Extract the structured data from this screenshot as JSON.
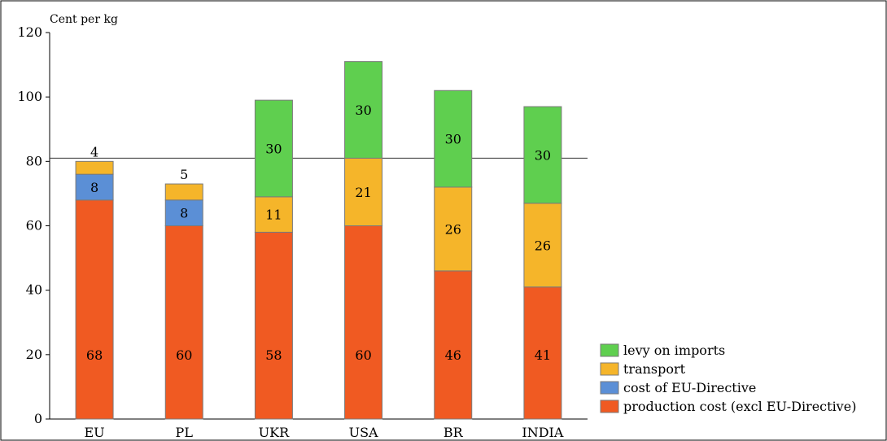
{
  "chart_data": {
    "type": "bar",
    "stacked": true,
    "ylabel": "Cent per kg",
    "ylim": [
      0,
      120
    ],
    "yticks": [
      0,
      20,
      40,
      60,
      80,
      100,
      120
    ],
    "reference_line": 81,
    "categories": [
      "EU",
      "PL",
      "UKR",
      "USA",
      "BR",
      "INDIA"
    ],
    "series": [
      {
        "name": "production cost (excl EU-Directive)",
        "color": "#f05a22",
        "values": [
          68,
          60,
          58,
          60,
          46,
          41
        ],
        "labels": [
          "68",
          "60",
          "58",
          "60",
          "46",
          "41"
        ]
      },
      {
        "name": "cost of EU-Directive",
        "color": "#5b8fd6",
        "values": [
          8,
          8,
          0,
          0,
          0,
          0
        ],
        "labels": [
          "8",
          "8",
          "",
          "",
          "",
          ""
        ]
      },
      {
        "name": "transport",
        "color": "#f5b52a",
        "values": [
          4,
          5,
          11,
          21,
          26,
          26
        ],
        "labels": [
          "4",
          "5",
          "11",
          "21",
          "26",
          "26"
        ]
      },
      {
        "name": "levy on imports",
        "color": "#5fcf4f",
        "values": [
          0,
          0,
          30,
          30,
          30,
          30
        ],
        "labels": [
          "",
          "",
          "30",
          "30",
          "30",
          "30"
        ]
      }
    ],
    "legend_order": [
      "levy on imports",
      "transport",
      "cost of EU-Directive",
      "production cost (excl EU-Directive)"
    ],
    "legend_position": "bottom-right"
  }
}
